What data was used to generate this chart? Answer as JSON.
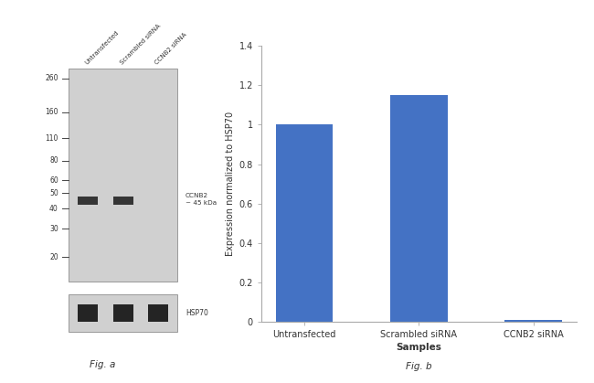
{
  "fig_width": 6.5,
  "fig_height": 4.19,
  "dpi": 100,
  "background_color": "#ffffff",
  "wb": {
    "lane_labels": [
      "Untransfected",
      "Scrambled siRNA",
      "CCNB2 siRNA"
    ],
    "mw_markers": [
      260,
      160,
      110,
      80,
      60,
      50,
      40,
      30,
      20
    ],
    "band_annotation": "CCNB2\n~ 45 kDa",
    "hsp70_label": "HSP70",
    "main_band_lanes": [
      0,
      1
    ],
    "gel_bg_color": "#d0d0d0",
    "gel_border_color": "#999999",
    "band_color": "#1a1a1a",
    "fig_label": "Fig. a"
  },
  "bar": {
    "categories": [
      "Untransfected",
      "Scrambled siRNA",
      "CCNB2 siRNA"
    ],
    "values": [
      1.0,
      1.15,
      0.01
    ],
    "bar_color": "#4472c4",
    "ylabel": "Expression normalized to HSP70",
    "xlabel": "Samples",
    "ylim": [
      0,
      1.4
    ],
    "yticks": [
      0,
      0.2,
      0.4,
      0.6,
      0.8,
      1.0,
      1.2,
      1.4
    ],
    "fig_label": "Fig. b"
  }
}
